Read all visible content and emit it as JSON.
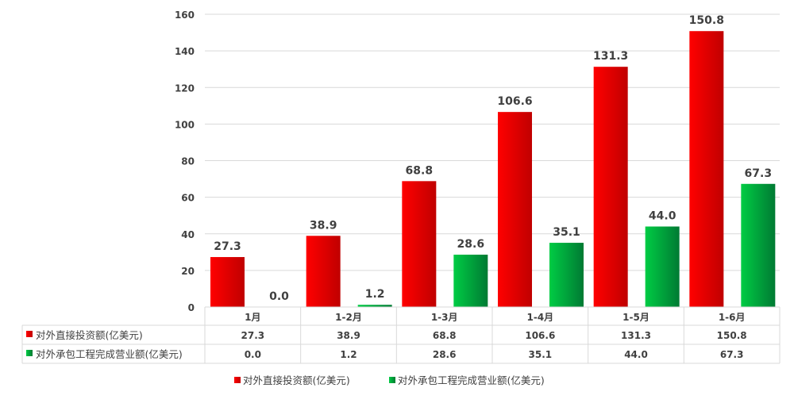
{
  "chart_data": {
    "type": "bar",
    "categories": [
      "1月",
      "1-2月",
      "1-3月",
      "1-4月",
      "1-5月",
      "1-6月"
    ],
    "series": [
      {
        "name": "对外直接投资额(亿美元)",
        "values": [
          27.3,
          38.9,
          68.8,
          106.6,
          131.3,
          150.8
        ],
        "color": "#ff0000",
        "color_dark": "#c00000"
      },
      {
        "name": "对外承包工程完成营业额(亿美元)",
        "values": [
          0.0,
          1.2,
          28.6,
          35.1,
          44.0,
          67.3
        ],
        "color": "#00cc44",
        "color_dark": "#007a33"
      }
    ],
    "yticks": [
      "0",
      "20",
      "40",
      "60",
      "80",
      "100",
      "120",
      "140",
      "160"
    ],
    "ylim": [
      0,
      160
    ],
    "grid": true,
    "data_labels": true,
    "data_table": true,
    "legend_placement": "bottom"
  }
}
